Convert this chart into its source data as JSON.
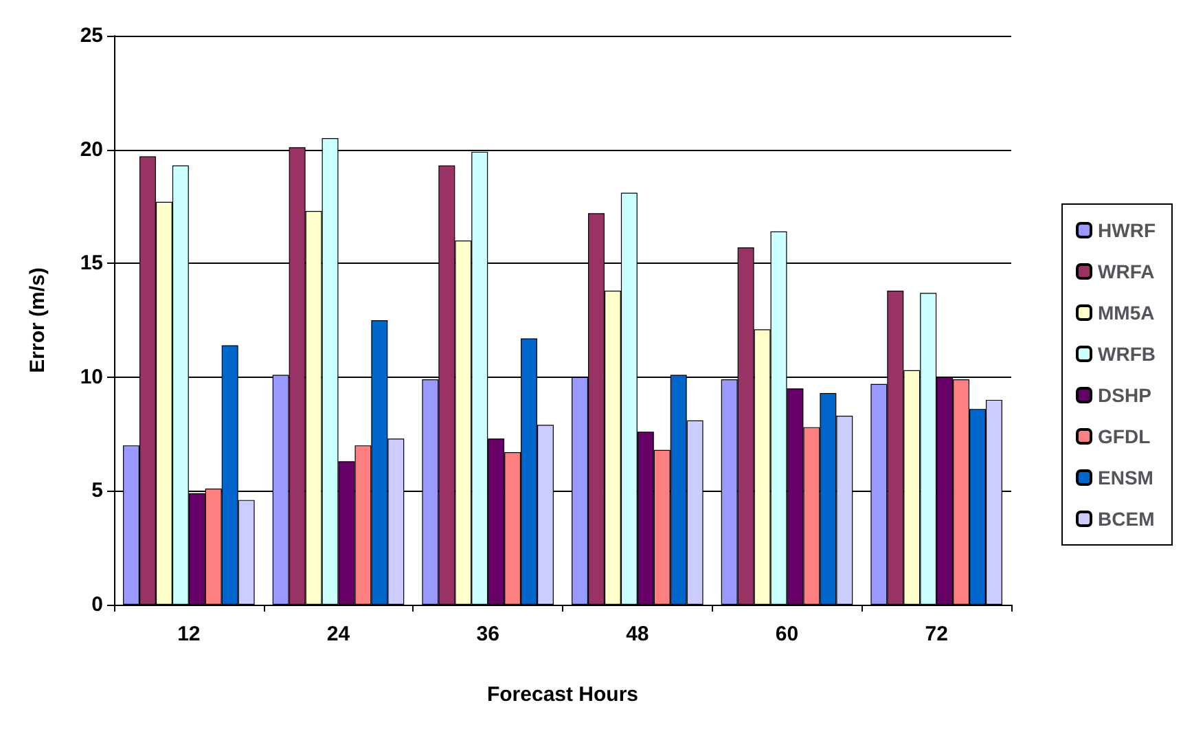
{
  "chart_data": {
    "type": "bar",
    "xlabel": "Forecast Hours",
    "ylabel": "Error (m/s)",
    "categories": [
      "12",
      "24",
      "36",
      "48",
      "60",
      "72"
    ],
    "series": [
      {
        "name": "HWRF",
        "color": "#9999ff",
        "values": [
          7.0,
          10.1,
          9.9,
          10.0,
          9.9,
          9.7
        ]
      },
      {
        "name": "WRFA",
        "color": "#993366",
        "values": [
          19.7,
          20.1,
          19.3,
          17.2,
          15.7,
          13.8
        ]
      },
      {
        "name": "MM5A",
        "color": "#ffffcc",
        "values": [
          17.7,
          17.3,
          16.0,
          13.8,
          12.1,
          10.3
        ]
      },
      {
        "name": "WRFB",
        "color": "#ccffff",
        "values": [
          19.3,
          20.5,
          19.9,
          18.1,
          16.4,
          13.7
        ]
      },
      {
        "name": "DSHP",
        "color": "#660066",
        "values": [
          4.9,
          6.3,
          7.3,
          7.6,
          9.5,
          10.0
        ]
      },
      {
        "name": "GFDL",
        "color": "#ff8080",
        "values": [
          5.1,
          7.0,
          6.7,
          6.8,
          7.8,
          9.9
        ]
      },
      {
        "name": "ENSM",
        "color": "#0066cc",
        "values": [
          11.4,
          12.5,
          11.7,
          10.1,
          9.3,
          8.6
        ]
      },
      {
        "name": "BCEM",
        "color": "#ccccff",
        "values": [
          4.6,
          7.3,
          7.9,
          8.1,
          8.3,
          9.0
        ]
      }
    ],
    "ylim": [
      0,
      25
    ],
    "yticks": [
      0,
      5,
      10,
      15,
      20,
      25
    ],
    "grid": "y",
    "legend": "right"
  }
}
